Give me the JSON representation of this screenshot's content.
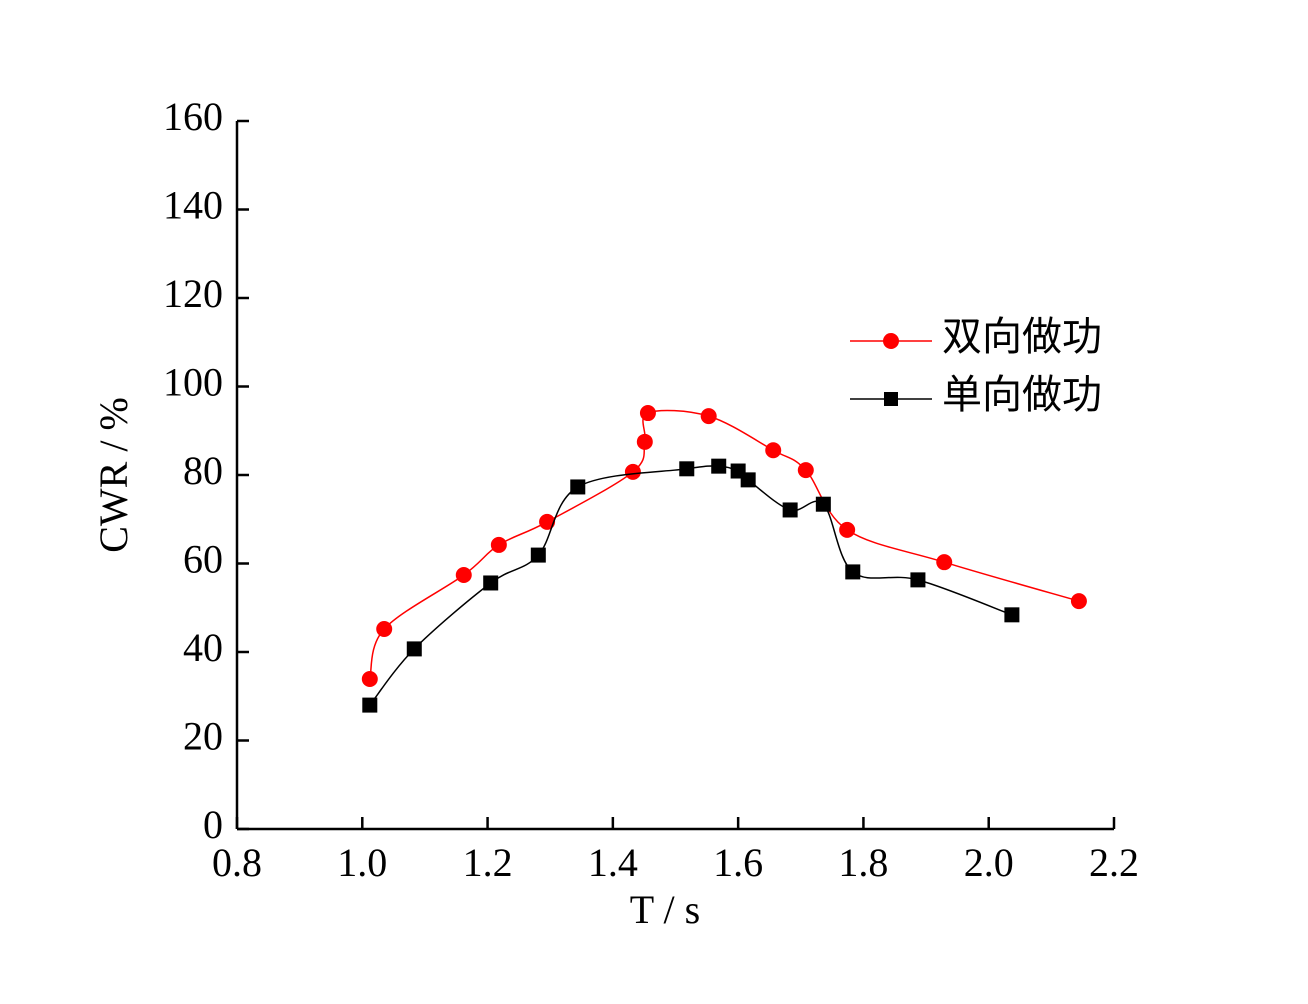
{
  "chart_data": {
    "type": "line",
    "xlabel": "T / s",
    "ylabel": "CWR / %",
    "xlim": [
      0.8,
      2.2
    ],
    "xticks": [
      {
        "value": 0.8,
        "label": "0.8"
      },
      {
        "value": 1.0,
        "label": "1.0"
      },
      1.2,
      1.4,
      1.6,
      1.8,
      {
        "value": 2.0,
        "label": "2.0"
      },
      2.2
    ],
    "ylim": [
      0,
      160
    ],
    "yticks": [
      0,
      20,
      40,
      60,
      80,
      100,
      120,
      140,
      160
    ],
    "legend": "upper right",
    "series": [
      {
        "name": "双向做功",
        "color": "#ff0000",
        "marker": "circle",
        "x": [
          1.012,
          1.035,
          1.162,
          1.218,
          1.295,
          1.432,
          1.451,
          1.456,
          1.553,
          1.656,
          1.708,
          1.774,
          1.929,
          2.144
        ],
        "values": [
          33.9,
          45.2,
          57.4,
          64.2,
          69.4,
          80.7,
          87.5,
          94.0,
          93.3,
          85.6,
          81.1,
          67.6,
          60.3,
          51.5
        ]
      },
      {
        "name": "单向做功",
        "color": "#000000",
        "marker": "square",
        "x": [
          1.012,
          1.083,
          1.205,
          1.281,
          1.344,
          1.518,
          1.569,
          1.6,
          1.616,
          1.683,
          1.736,
          1.783,
          1.887,
          2.037
        ],
        "values": [
          28.0,
          40.7,
          55.6,
          61.9,
          77.3,
          81.4,
          82.0,
          80.9,
          78.9,
          72.1,
          73.4,
          58.1,
          56.3,
          48.4
        ]
      }
    ]
  }
}
